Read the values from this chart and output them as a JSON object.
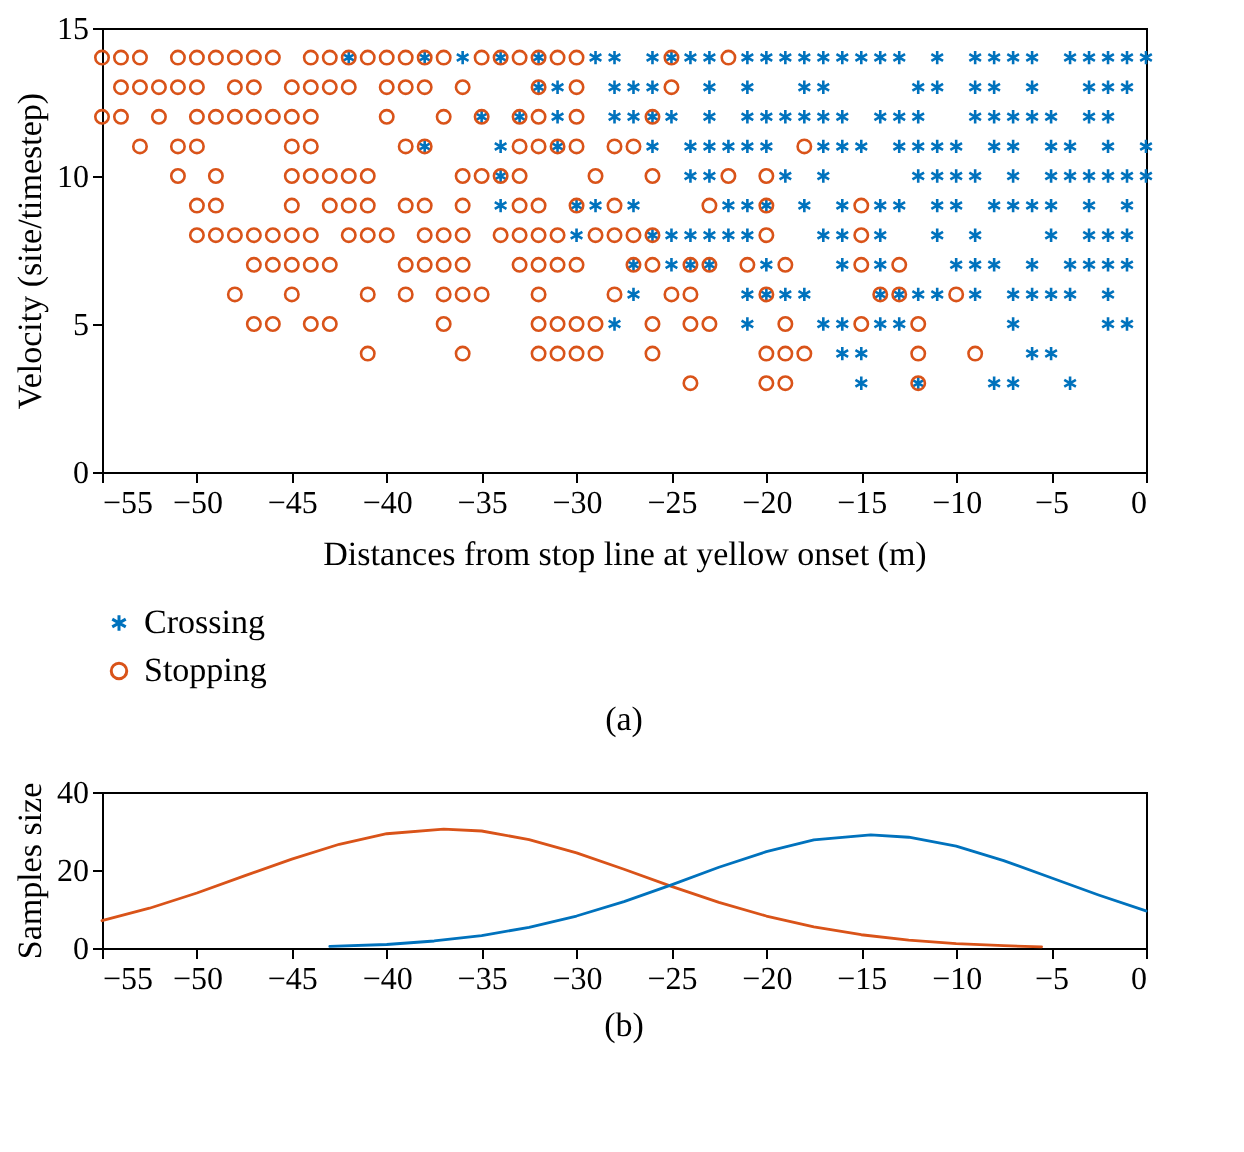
{
  "chart_data": [
    {
      "type": "scatter",
      "xlabel": "Distances from stop line at yellow onset (m)",
      "ylabel": "Velocity (site/timestep)",
      "annotations": [
        "(a)"
      ],
      "xlim": [
        -55,
        0
      ],
      "xticks": [
        -55,
        -50,
        -45,
        -40,
        -35,
        -30,
        -25,
        -20,
        -15,
        -10,
        -5,
        0
      ],
      "ylim": [
        0,
        15
      ],
      "yticks": [
        0,
        5,
        10,
        15
      ],
      "grid": false,
      "legend": "bottom",
      "series": [
        {
          "name": "Crossing",
          "color": "#0072bd",
          "marker": "cross",
          "x": [
            -42,
            -38,
            -36,
            -34,
            -32,
            -29,
            -28,
            -26,
            -25,
            -24,
            -23,
            -21,
            -20,
            -19,
            -18,
            -17,
            -16,
            -15,
            -14,
            -13,
            -11,
            -9,
            -8,
            -7,
            -6,
            -4,
            -3,
            -2,
            -1,
            0,
            -32,
            -31,
            -28,
            -27,
            -26,
            -23,
            -21,
            -18,
            -17,
            -12,
            -11,
            -9,
            -8,
            -6,
            -3,
            -2,
            -1,
            -35,
            -33,
            -31,
            -28,
            -27,
            -26,
            -25,
            -23,
            -21,
            -20,
            -19,
            -18,
            -17,
            -16,
            -14,
            -13,
            -12,
            -9,
            -8,
            -7,
            -6,
            -5,
            -3,
            -2,
            -38,
            -34,
            -31,
            -26,
            -24,
            -23,
            -22,
            -21,
            -20,
            -17,
            -16,
            -15,
            -13,
            -12,
            -11,
            -10,
            -8,
            -7,
            -5,
            -4,
            -2,
            0,
            -34,
            -24,
            -23,
            -19,
            -17,
            -12,
            -11,
            -10,
            -9,
            -7,
            -5,
            -4,
            -3,
            -2,
            -1,
            0,
            -34,
            -30,
            -29,
            -27,
            -22,
            -21,
            -20,
            -18,
            -16,
            -14,
            -13,
            -11,
            -10,
            -8,
            -7,
            -6,
            -5,
            -3,
            -1,
            -30,
            -26,
            -25,
            -24,
            -23,
            -22,
            -21,
            -17,
            -16,
            -14,
            -11,
            -9,
            -5,
            -3,
            -2,
            -1,
            -27,
            -25,
            -24,
            -23,
            -20,
            -16,
            -14,
            -10,
            -9,
            -8,
            -6,
            -4,
            -3,
            -2,
            -1,
            -27,
            -21,
            -20,
            -19,
            -18,
            -14,
            -13,
            -12,
            -11,
            -9,
            -7,
            -6,
            -5,
            -4,
            -2,
            -28,
            -21,
            -17,
            -16,
            -14,
            -13,
            -7,
            -2,
            -1,
            -16,
            -15,
            -6,
            -5,
            -15,
            -12,
            -8,
            -7,
            -4
          ],
          "values": [
            14,
            14,
            14,
            14,
            14,
            14,
            14,
            14,
            14,
            14,
            14,
            14,
            14,
            14,
            14,
            14,
            14,
            14,
            14,
            14,
            14,
            14,
            14,
            14,
            14,
            14,
            14,
            14,
            14,
            14,
            13,
            13,
            13,
            13,
            13,
            13,
            13,
            13,
            13,
            13,
            13,
            13,
            13,
            13,
            13,
            13,
            13,
            12,
            12,
            12,
            12,
            12,
            12,
            12,
            12,
            12,
            12,
            12,
            12,
            12,
            12,
            12,
            12,
            12,
            12,
            12,
            12,
            12,
            12,
            12,
            12,
            11,
            11,
            11,
            11,
            11,
            11,
            11,
            11,
            11,
            11,
            11,
            11,
            11,
            11,
            11,
            11,
            11,
            11,
            11,
            11,
            11,
            11,
            10,
            10,
            10,
            10,
            10,
            10,
            10,
            10,
            10,
            10,
            10,
            10,
            10,
            10,
            10,
            10,
            9,
            9,
            9,
            9,
            9,
            9,
            9,
            9,
            9,
            9,
            9,
            9,
            9,
            9,
            9,
            9,
            9,
            9,
            9,
            8,
            8,
            8,
            8,
            8,
            8,
            8,
            8,
            8,
            8,
            8,
            8,
            8,
            8,
            8,
            8,
            7,
            7,
            7,
            7,
            7,
            7,
            7,
            7,
            7,
            7,
            7,
            7,
            7,
            7,
            7,
            6,
            6,
            6,
            6,
            6,
            6,
            6,
            6,
            6,
            6,
            6,
            6,
            6,
            6,
            6,
            5,
            5,
            5,
            5,
            5,
            5,
            5,
            5,
            5,
            4,
            4,
            4,
            4,
            3,
            3,
            3,
            3,
            3
          ]
        },
        {
          "name": "Stopping",
          "color": "#d95319",
          "marker": "circle",
          "x": [
            -55,
            -54,
            -53,
            -51,
            -50,
            -49,
            -48,
            -47,
            -46,
            -44,
            -43,
            -42,
            -41,
            -40,
            -39,
            -38,
            -37,
            -35,
            -34,
            -33,
            -32,
            -31,
            -30,
            -25,
            -22,
            -54,
            -53,
            -52,
            -51,
            -50,
            -48,
            -47,
            -45,
            -44,
            -43,
            -42,
            -40,
            -39,
            -38,
            -36,
            -32,
            -30,
            -25,
            -55,
            -54,
            -52,
            -50,
            -49,
            -48,
            -47,
            -46,
            -45,
            -44,
            -40,
            -37,
            -35,
            -33,
            -32,
            -30,
            -26,
            -53,
            -51,
            -50,
            -45,
            -44,
            -39,
            -38,
            -33,
            -32,
            -31,
            -30,
            -28,
            -27,
            -18,
            -51,
            -49,
            -45,
            -44,
            -43,
            -42,
            -41,
            -36,
            -35,
            -34,
            -33,
            -29,
            -26,
            -22,
            -20,
            -50,
            -49,
            -45,
            -43,
            -42,
            -41,
            -39,
            -38,
            -36,
            -33,
            -32,
            -30,
            -28,
            -23,
            -20,
            -15,
            -50,
            -49,
            -48,
            -47,
            -46,
            -45,
            -44,
            -42,
            -41,
            -40,
            -38,
            -37,
            -36,
            -34,
            -33,
            -32,
            -31,
            -29,
            -28,
            -27,
            -26,
            -20,
            -15,
            -47,
            -46,
            -45,
            -44,
            -43,
            -39,
            -38,
            -37,
            -36,
            -33,
            -32,
            -31,
            -30,
            -27,
            -26,
            -24,
            -23,
            -21,
            -19,
            -15,
            -13,
            -48,
            -45,
            -41,
            -39,
            -37,
            -36,
            -35,
            -32,
            -28,
            -25,
            -24,
            -20,
            -14,
            -13,
            -10,
            -47,
            -46,
            -44,
            -43,
            -37,
            -32,
            -31,
            -30,
            -29,
            -26,
            -24,
            -23,
            -19,
            -15,
            -12,
            -41,
            -36,
            -32,
            -31,
            -30,
            -29,
            -26,
            -20,
            -19,
            -18,
            -12,
            -9,
            -24,
            -20,
            -19,
            -12
          ],
          "values": [
            14,
            14,
            14,
            14,
            14,
            14,
            14,
            14,
            14,
            14,
            14,
            14,
            14,
            14,
            14,
            14,
            14,
            14,
            14,
            14,
            14,
            14,
            14,
            14,
            14,
            13,
            13,
            13,
            13,
            13,
            13,
            13,
            13,
            13,
            13,
            13,
            13,
            13,
            13,
            13,
            13,
            13,
            13,
            12,
            12,
            12,
            12,
            12,
            12,
            12,
            12,
            12,
            12,
            12,
            12,
            12,
            12,
            12,
            12,
            12,
            11,
            11,
            11,
            11,
            11,
            11,
            11,
            11,
            11,
            11,
            11,
            11,
            11,
            11,
            10,
            10,
            10,
            10,
            10,
            10,
            10,
            10,
            10,
            10,
            10,
            10,
            10,
            10,
            10,
            9,
            9,
            9,
            9,
            9,
            9,
            9,
            9,
            9,
            9,
            9,
            9,
            9,
            9,
            9,
            9,
            8,
            8,
            8,
            8,
            8,
            8,
            8,
            8,
            8,
            8,
            8,
            8,
            8,
            8,
            8,
            8,
            8,
            8,
            8,
            8,
            8,
            8,
            8,
            7,
            7,
            7,
            7,
            7,
            7,
            7,
            7,
            7,
            7,
            7,
            7,
            7,
            7,
            7,
            7,
            7,
            7,
            7,
            7,
            7,
            6,
            6,
            6,
            6,
            6,
            6,
            6,
            6,
            6,
            6,
            6,
            6,
            6,
            6,
            6,
            5,
            5,
            5,
            5,
            5,
            5,
            5,
            5,
            5,
            5,
            5,
            5,
            5,
            5,
            5,
            4,
            4,
            4,
            4,
            4,
            4,
            4,
            4,
            4,
            4,
            4,
            4,
            3,
            3,
            3,
            3
          ]
        }
      ]
    },
    {
      "type": "line",
      "ylabel": "Samples size",
      "annotations": [
        "(b)"
      ],
      "xlim": [
        -55,
        0
      ],
      "xticks": [
        -55,
        -50,
        -45,
        -40,
        -35,
        -30,
        -25,
        -20,
        -15,
        -10,
        -5,
        0
      ],
      "ylim": [
        0,
        40
      ],
      "yticks": [
        0,
        20,
        40
      ],
      "grid": false,
      "series": [
        {
          "color": "#d95319",
          "x": [
            -55,
            -52.5,
            -50,
            -47.5,
            -45,
            -42.5,
            -40,
            -37,
            -35,
            -32.5,
            -30,
            -27.5,
            -25,
            -22.5,
            -20,
            -17.5,
            -15,
            -12.5,
            -10,
            -7.5,
            -5.5
          ],
          "values": [
            7.0,
            10.2,
            14.1,
            18.5,
            22.8,
            26.6,
            29.3,
            30.5,
            30.0,
            27.8,
            24.4,
            20.2,
            15.8,
            11.7,
            8.2,
            5.4,
            3.4,
            2.0,
            1.1,
            0.6,
            0.3
          ]
        },
        {
          "color": "#0072bd",
          "x": [
            -43,
            -40,
            -37.5,
            -35,
            -32.5,
            -30,
            -27.5,
            -25,
            -22.5,
            -20,
            -17.5,
            -14.5,
            -12.5,
            -10,
            -7.5,
            -5,
            -2.5,
            0
          ],
          "values": [
            0.4,
            0.9,
            1.8,
            3.2,
            5.3,
            8.2,
            11.9,
            16.2,
            20.7,
            24.7,
            27.7,
            29,
            28.4,
            26.1,
            22.4,
            18.0,
            13.6,
            9.5
          ]
        }
      ]
    }
  ]
}
